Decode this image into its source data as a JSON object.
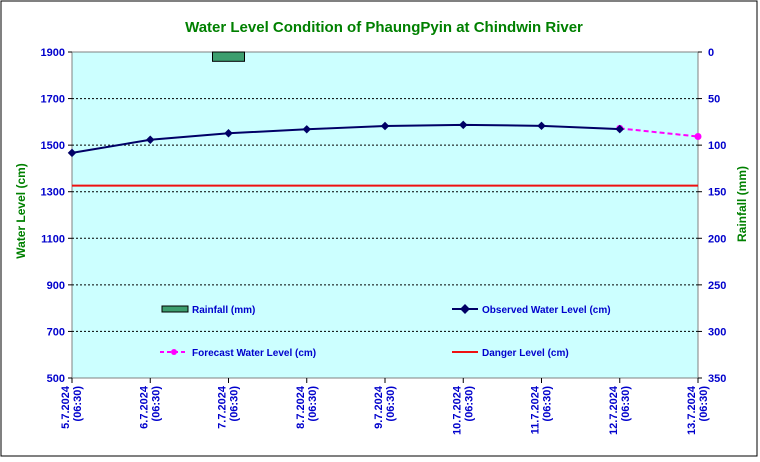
{
  "chart_data": {
    "type": "line",
    "title": "Water Level Condition of PhaungPyin at Chindwin River",
    "ylabel_left": "Water Level (cm)",
    "ylabel_right": "Rainfall (mm)",
    "ylim_left": [
      500,
      1900
    ],
    "yticks_left": [
      "500",
      "700",
      "900",
      "1100",
      "1300",
      "1500",
      "1700",
      "1900"
    ],
    "ylim_right": [
      0,
      350
    ],
    "yticks_right": [
      "0",
      "50",
      "100",
      "150",
      "200",
      "250",
      "300",
      "350"
    ],
    "right_axis_inverted": true,
    "grid": "horizontal dashed",
    "categories": [
      [
        "5.7.2024",
        "(06:30)"
      ],
      [
        "6.7.2024",
        "(06:30)"
      ],
      [
        "7.7.2024",
        "(06:30)"
      ],
      [
        "8.7.2024",
        "(06:30)"
      ],
      [
        "9.7.2024",
        "(06:30)"
      ],
      [
        "10.7.2024",
        "(06:30)"
      ],
      [
        "11.7.2024",
        "(06:30)"
      ],
      [
        "12.7.2024",
        "(06:30)"
      ],
      [
        "13.7.2024",
        "(06:30)"
      ]
    ],
    "rainfall": {
      "name": "Rainfall (mm)",
      "color": "#3c9e6e",
      "values": [
        null,
        null,
        10,
        null,
        null,
        null,
        null,
        null,
        null
      ]
    },
    "observed": {
      "name": "Observed Water Level (cm)",
      "color": "#000066",
      "values": [
        1467,
        1523,
        1551,
        1568,
        1582,
        1587,
        1583,
        1569,
        null
      ]
    },
    "forecast": {
      "name": "Forecast Water Level (cm)",
      "color": "#ff00ff",
      "values": [
        null,
        null,
        null,
        null,
        null,
        null,
        null,
        1572,
        1537
      ]
    },
    "danger": {
      "name": "Danger Level (cm)",
      "color": "#ee1111",
      "value": 1326
    },
    "colors": {
      "plot_bg": "#ccffff",
      "axis_text": "#0000cc",
      "title_text": "#008000"
    }
  }
}
